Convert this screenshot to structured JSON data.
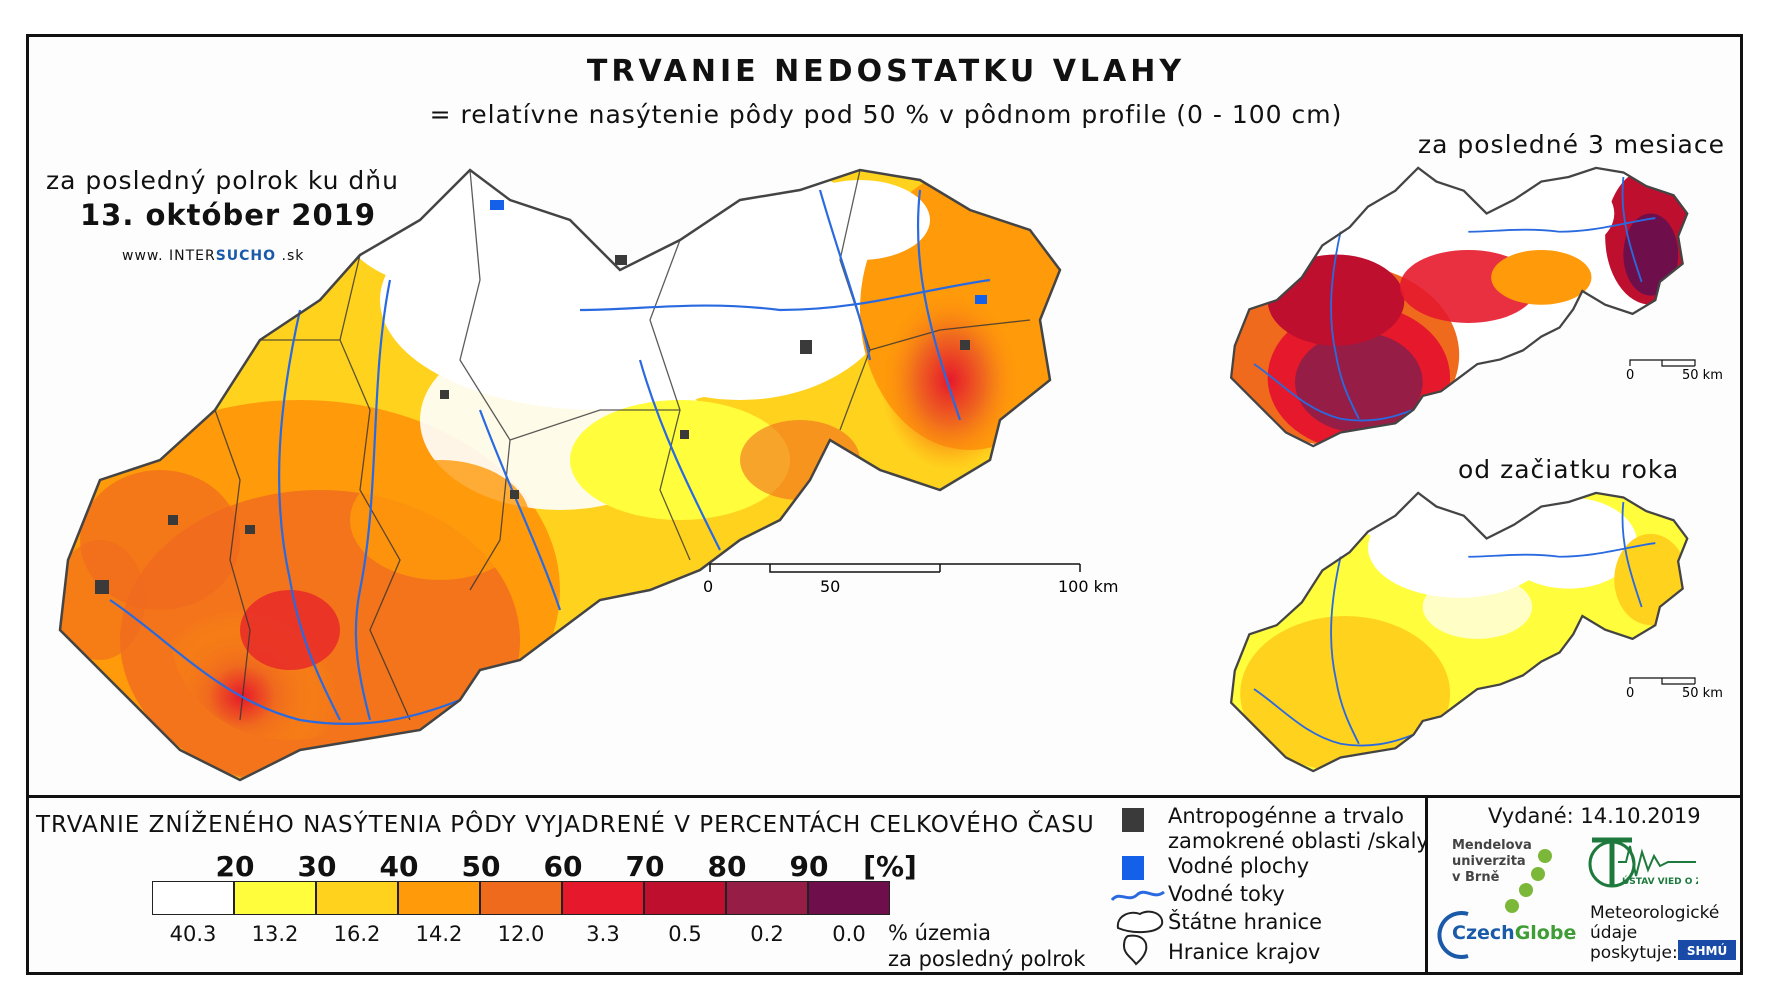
{
  "header": {
    "title": "TRVANIE NEDOSTATKU VLAHY",
    "subtitle": "= relatívne nasýtenie pôdy pod 50 % v pôdnom profile (0 - 100 cm)"
  },
  "main_map": {
    "period_label": "za posledný polrok ku dňu",
    "date": "13. október 2019",
    "website_prefix": "www. INTER",
    "website_brand": "SUCHO",
    "website_suffix": " .sk",
    "scale": {
      "t0": "0",
      "t1": "50",
      "t2": "100 km"
    }
  },
  "inset_3months": {
    "label": "za posledné 3 mesiace",
    "scale": {
      "t0": "0",
      "t1": "50 km"
    }
  },
  "inset_ytd": {
    "label": "od začiatku roka",
    "scale": {
      "t0": "0",
      "t1": "50 km"
    }
  },
  "legend": {
    "title": "TRVANIE ZNÍŽENÉHO NASÝTENIA PÔDY VYJADRENÉ V PERCENTÁCH CELKOVÉHO ČASU",
    "thresholds": [
      "20",
      "30",
      "40",
      "50",
      "60",
      "70",
      "80",
      "90",
      "[%]"
    ],
    "bins": [
      {
        "color": "#ffffff",
        "share": "40.3"
      },
      {
        "color": "#fffd3c",
        "share": "13.2"
      },
      {
        "color": "#ffd21e",
        "share": "16.2"
      },
      {
        "color": "#ff9a0a",
        "share": "14.2"
      },
      {
        "color": "#f06a1e",
        "share": "12.0"
      },
      {
        "color": "#e6192c",
        "share": "3.3"
      },
      {
        "color": "#be0f2e",
        "share": "0.5"
      },
      {
        "color": "#961e46",
        "share": "0.2"
      },
      {
        "color": "#6e0f4b",
        "share": "0.0"
      }
    ],
    "share_label_line1": "% územia",
    "share_label_line2": "za posledný polrok"
  },
  "symbols": {
    "urban_line1": "Antropogénne a trvalo",
    "urban_line2": "zamokrené oblasti /skaly",
    "water": "Vodné plochy",
    "rivers": "Vodné toky",
    "border": "Štátne hranice",
    "regions": "Hranice krajov",
    "urban_color": "#3a3a3a",
    "water_color": "#1560e8",
    "river_color": "#2a6ae0"
  },
  "footer": {
    "issued": "Vydané: 14.10.2019",
    "mendel_line1": "Mendelova",
    "mendel_line2": "univerzita",
    "mendel_line3": "v Brně",
    "czechglobe_a": "Czech",
    "czechglobe_b": "Globe",
    "ustav": "ÚSTAV VIED O ZEMI",
    "meteo_line1": "Meteorologické",
    "meteo_line2": "údaje",
    "meteo_line3": "poskytuje:",
    "shmu": "SHMÚ"
  }
}
